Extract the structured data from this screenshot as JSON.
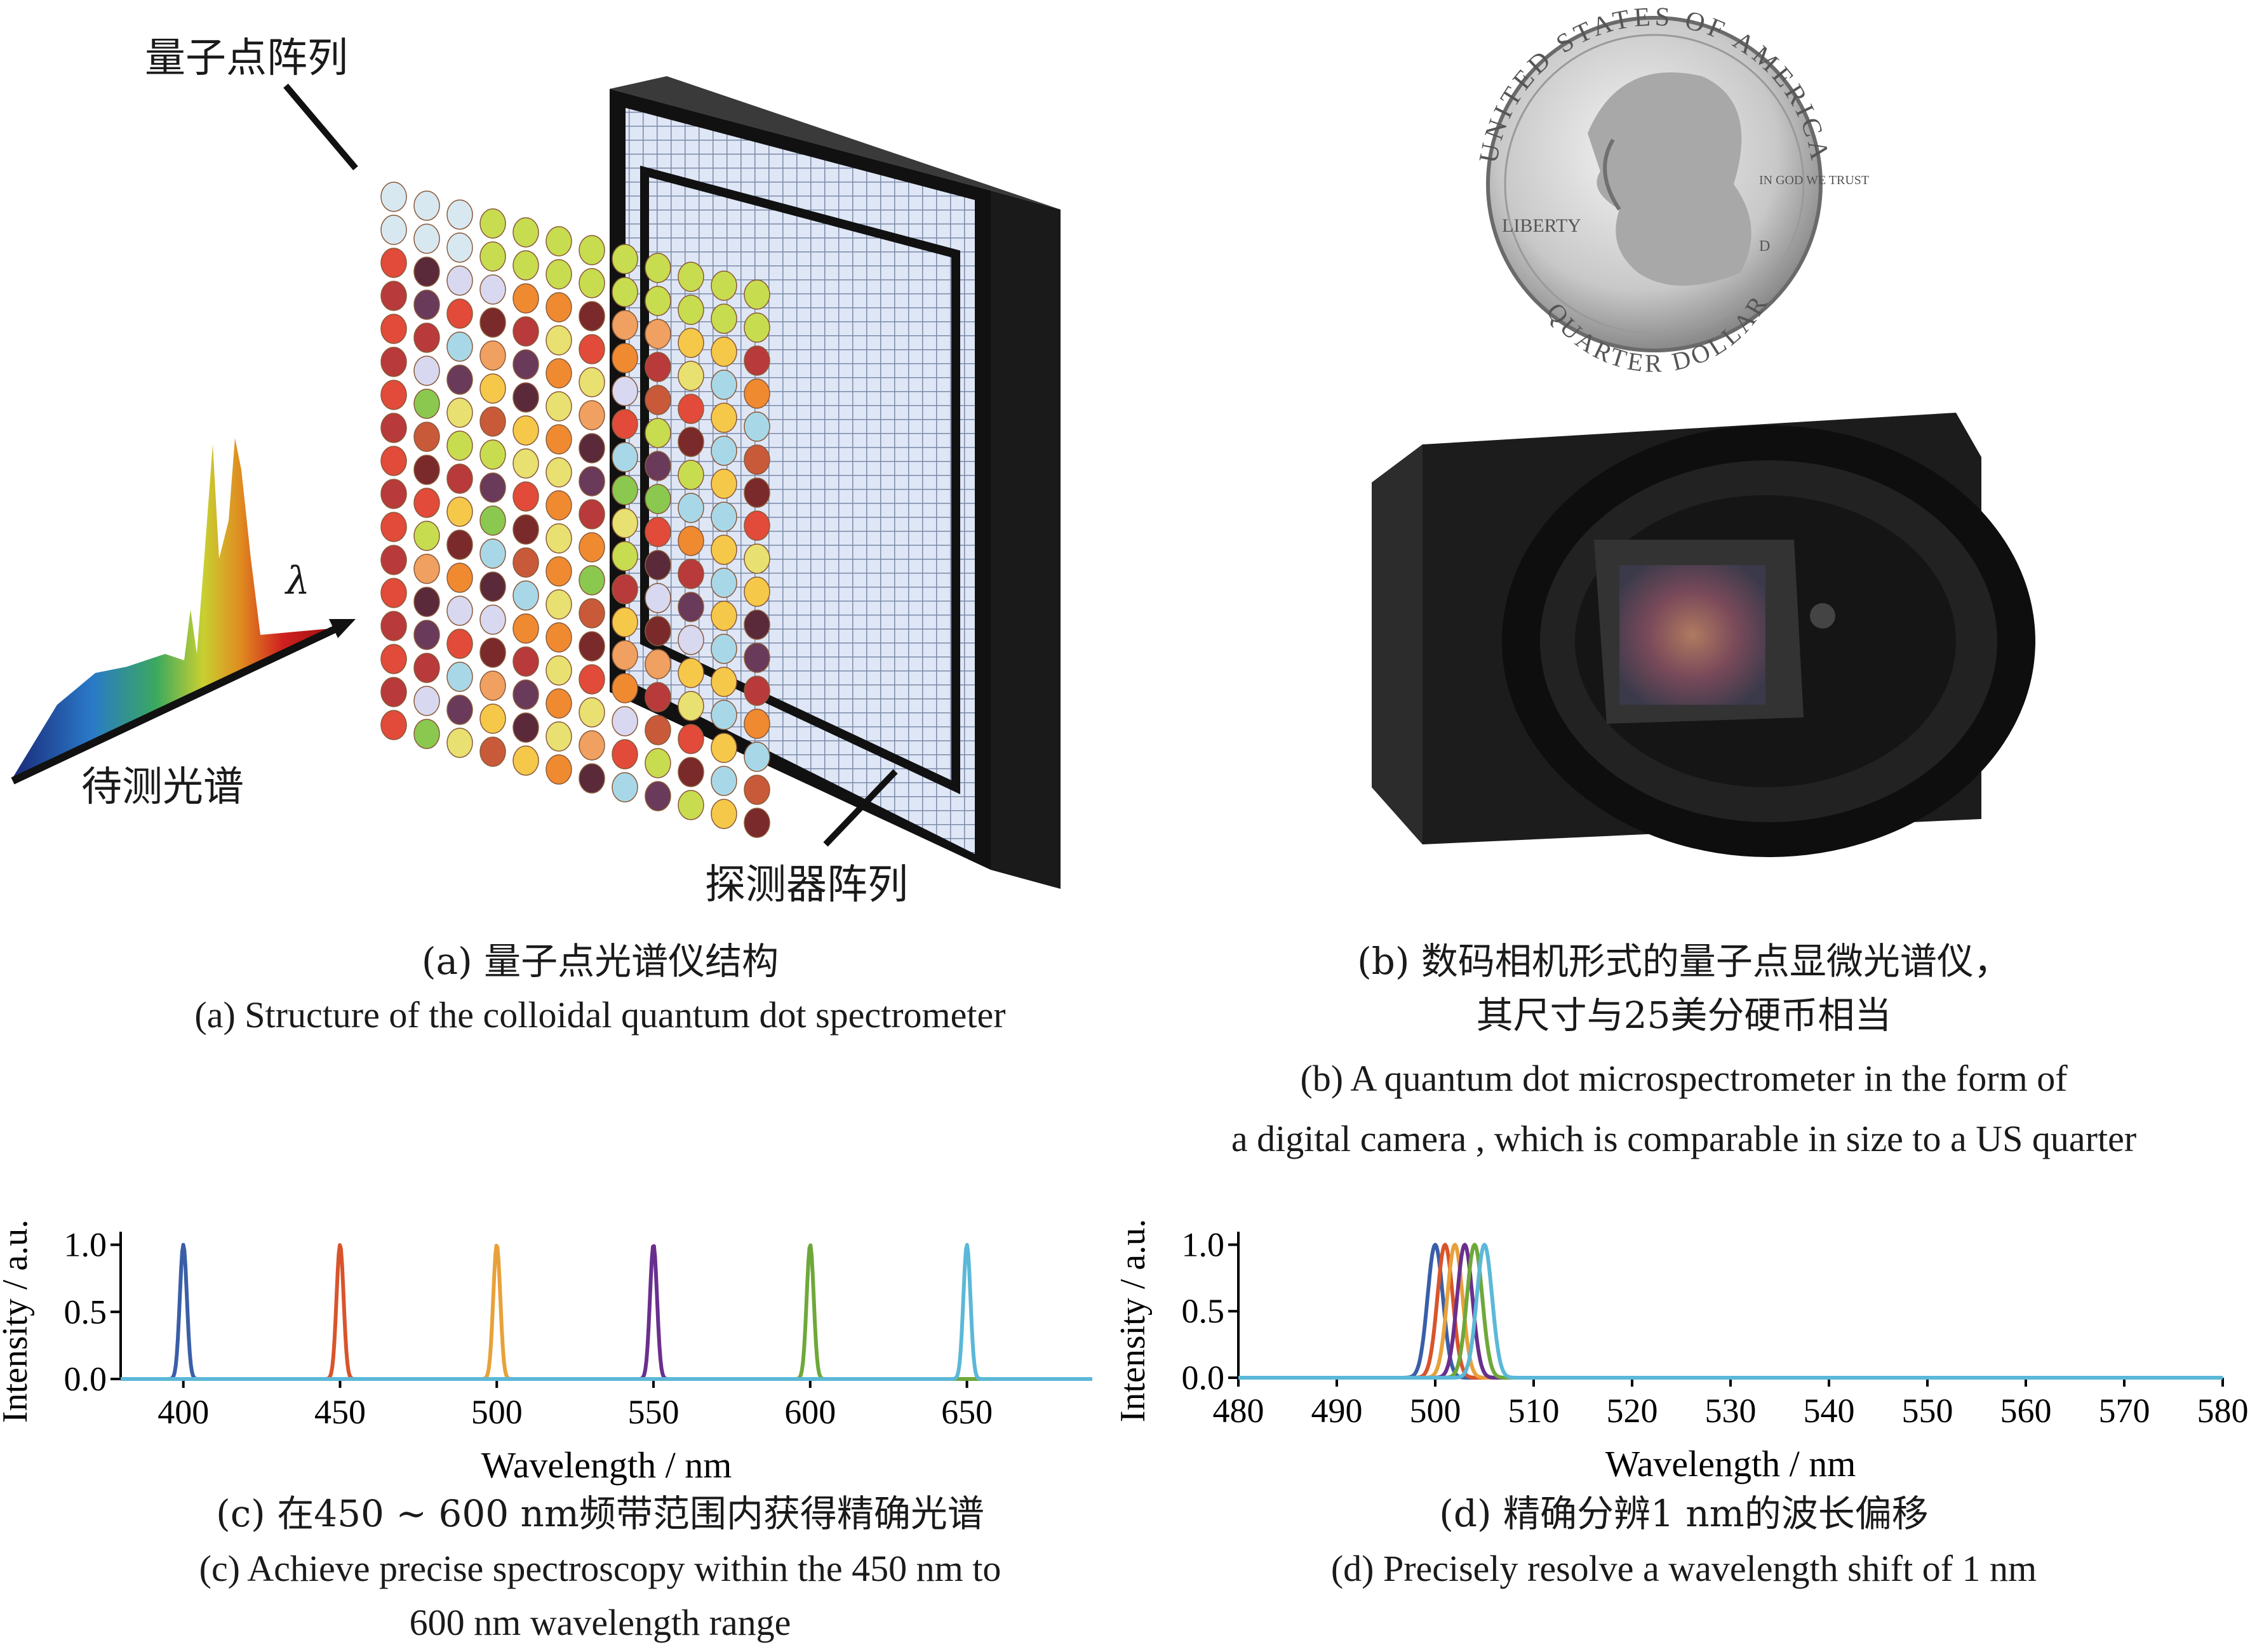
{
  "panel_a": {
    "label_qd_array": "量子点阵列",
    "label_spectrum": "待测光谱",
    "label_lambda": "λ",
    "label_detector": "探测器阵列",
    "caption_cn": "(a) 量子点光谱仪结构",
    "caption_en": "(a) Structure of the colloidal quantum dot spectrometer"
  },
  "panel_b": {
    "coin_text_top": "UNITED STATES OF AMERICA",
    "coin_text_bottom": "QUARTER DOLLAR",
    "coin_liberty": "LIBERTY",
    "coin_motto": "IN GOD WE TRUST",
    "coin_mint": "D",
    "caption_cn_1": "(b) 数码相机形式的量子点显微光谱仪，",
    "caption_cn_2": "其尺寸与25美分硬币相当",
    "caption_en_1": "(b) A quantum dot microspectrometer in the form of",
    "caption_en_2": "a digital camera , which is comparable in size to a US quarter"
  },
  "panel_c": {
    "caption_cn": "(c) 在450 ~ 600 nm频带范围内获得精确光谱",
    "caption_en_1": "(c) Achieve precise spectroscopy within the 450 nm to",
    "caption_en_2": "600 nm wavelength range"
  },
  "panel_d": {
    "caption_cn": "(d) 精确分辨1 nm的波长偏移",
    "caption_en": "(d) Precisely resolve a wavelength shift of 1 nm"
  },
  "colors": {
    "blue": "#3a5fa8",
    "red": "#d9542b",
    "orange": "#e8a13a",
    "purple": "#6a2f8e",
    "green": "#6fa83a",
    "cyan": "#5bb8d8"
  },
  "chart_data": [
    {
      "type": "line",
      "xlabel": "Wavelength / nm",
      "ylabel": "Intensity / a.u.",
      "xlim": [
        380,
        690
      ],
      "ylim": [
        0,
        1.05
      ],
      "xticks": [
        400,
        450,
        500,
        550,
        600,
        650
      ],
      "yticks": [
        "0.0",
        "0.5",
        "1.0"
      ],
      "series": [
        {
          "peak": 400,
          "width": 1.6,
          "color": "#3a5fa8"
        },
        {
          "peak": 450,
          "width": 1.6,
          "color": "#d9542b"
        },
        {
          "peak": 500,
          "width": 1.6,
          "color": "#e8a13a"
        },
        {
          "peak": 550,
          "width": 1.6,
          "color": "#6a2f8e"
        },
        {
          "peak": 600,
          "width": 1.6,
          "color": "#6fa83a"
        },
        {
          "peak": 650,
          "width": 1.6,
          "color": "#5bb8d8"
        }
      ]
    },
    {
      "type": "line",
      "xlabel": "Wavelength / nm",
      "ylabel": "Intensity / a.u.",
      "xlim": [
        480,
        580
      ],
      "ylim": [
        0,
        1.05
      ],
      "xticks": [
        480,
        490,
        500,
        510,
        520,
        530,
        540,
        550,
        560,
        570,
        580
      ],
      "yticks": [
        "0.0",
        "0.5",
        "1.0"
      ],
      "series": [
        {
          "peak": 500,
          "width": 1.1,
          "color": "#3a5fa8"
        },
        {
          "peak": 501,
          "width": 1.1,
          "color": "#d9542b"
        },
        {
          "peak": 502,
          "width": 1.1,
          "color": "#e8a13a"
        },
        {
          "peak": 503,
          "width": 1.1,
          "color": "#6a2f8e"
        },
        {
          "peak": 504,
          "width": 1.1,
          "color": "#6fa83a"
        },
        {
          "peak": 505,
          "width": 1.1,
          "color": "#5bb8d8"
        }
      ]
    }
  ]
}
